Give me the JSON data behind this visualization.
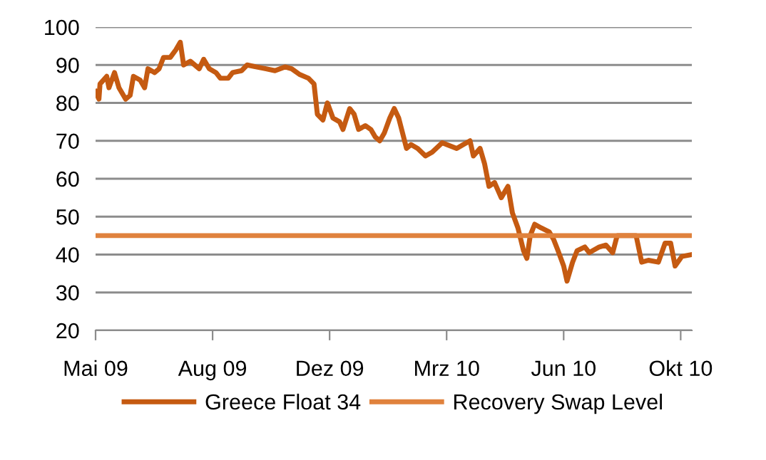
{
  "chart_data": {
    "type": "line",
    "series": [
      {
        "name": "Greece Float 34",
        "color": "#c55a11",
        "x": [
          "2009-05-05",
          "2009-05-08",
          "2009-05-09",
          "2009-05-15",
          "2009-05-17",
          "2009-05-22",
          "2009-05-26",
          "2009-06-01",
          "2009-06-05",
          "2009-06-08",
          "2009-06-14",
          "2009-06-18",
          "2009-06-21",
          "2009-06-27",
          "2009-07-01",
          "2009-07-05",
          "2009-07-11",
          "2009-07-16",
          "2009-07-20",
          "2009-07-23",
          "2009-07-29",
          "2009-08-02",
          "2009-08-06",
          "2009-08-10",
          "2009-08-15",
          "2009-08-21",
          "2009-08-25",
          "2009-09-01",
          "2009-09-05",
          "2009-09-13",
          "2009-09-18",
          "2009-09-26",
          "2009-10-05",
          "2009-10-13",
          "2009-10-22",
          "2009-10-28",
          "2009-11-04",
          "2009-11-12",
          "2009-11-17",
          "2009-11-20",
          "2009-11-25",
          "2009-11-29",
          "2009-12-04",
          "2009-12-10",
          "2009-12-13",
          "2009-12-19",
          "2009-12-23",
          "2009-12-27",
          "2010-01-02",
          "2010-01-07",
          "2010-01-11",
          "2010-01-15",
          "2010-01-19",
          "2010-01-24",
          "2010-01-28",
          "2010-02-01",
          "2010-02-08",
          "2010-02-12",
          "2010-02-18",
          "2010-02-25",
          "2010-03-03",
          "2010-03-12",
          "2010-03-25",
          "2010-03-31",
          "2010-04-06",
          "2010-04-09",
          "2010-04-15",
          "2010-04-19",
          "2010-04-23",
          "2010-04-28",
          "2010-05-04",
          "2010-05-10",
          "2010-05-14",
          "2010-05-19",
          "2010-05-24",
          "2010-05-27",
          "2010-05-30",
          "2010-06-03",
          "2010-06-09",
          "2010-06-16",
          "2010-06-20",
          "2010-06-24",
          "2010-06-29",
          "2010-07-02",
          "2010-07-07",
          "2010-07-11",
          "2010-07-18",
          "2010-07-22",
          "2010-07-31",
          "2010-08-06",
          "2010-08-12",
          "2010-08-16",
          "2010-08-21",
          "2010-08-27",
          "2010-09-02",
          "2010-09-07",
          "2010-09-13",
          "2010-09-22",
          "2010-09-28",
          "2010-10-03",
          "2010-10-07",
          "2010-10-13",
          "2010-10-22"
        ],
        "values": [
          83,
          81,
          85,
          87,
          84,
          88,
          84,
          81,
          82,
          87,
          86,
          84,
          89,
          88,
          89,
          92,
          92,
          94,
          96,
          90,
          91,
          90,
          89,
          91.5,
          89,
          88,
          86.5,
          86.5,
          88,
          88.5,
          90,
          89.5,
          89,
          88.5,
          89.5,
          89,
          87.5,
          86.5,
          85,
          77,
          75.5,
          80,
          76,
          75,
          73,
          78.5,
          77,
          73,
          74,
          73,
          71,
          70,
          72,
          76,
          78.5,
          76,
          68,
          69,
          68,
          66,
          67,
          69.5,
          68,
          69,
          70,
          66,
          68,
          64,
          58,
          59,
          55,
          58,
          51,
          47,
          41,
          39,
          45,
          48,
          47,
          46,
          44,
          41,
          37,
          33,
          38,
          41,
          42,
          40.5,
          42,
          42.5,
          40.5,
          45,
          45,
          45,
          45,
          38,
          38.5,
          38,
          43,
          43,
          37,
          39.5,
          40
        ]
      },
      {
        "name": "Recovery Swap Level",
        "color": "#e0823d",
        "x": [
          "2009-05-05",
          "2010-10-22"
        ],
        "values": [
          45,
          45
        ]
      }
    ],
    "xlim": [
      "2009-05-05",
      "2010-10-22"
    ],
    "xticks": [
      {
        "value": "2009-05-05",
        "label": "Mai 09"
      },
      {
        "value": "2009-08-18",
        "label": "Aug 09"
      },
      {
        "value": "2009-12-01",
        "label": "Dez 09"
      },
      {
        "value": "2010-03-16",
        "label": "Mrz 10"
      },
      {
        "value": "2010-06-29",
        "label": "Jun 10"
      },
      {
        "value": "2010-10-12",
        "label": "Okt 10"
      }
    ],
    "ylim": [
      20,
      100
    ],
    "yticks": [
      20,
      30,
      40,
      50,
      60,
      70,
      80,
      90,
      100
    ],
    "grid": "y",
    "legend": "bottom",
    "marker": "none",
    "line_style": "solid"
  }
}
